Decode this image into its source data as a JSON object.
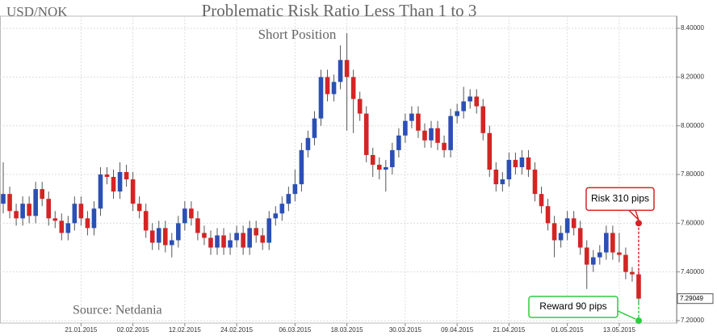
{
  "chart_data": {
    "type": "candlestick",
    "symbol": "USD/NOK",
    "title": "Problematic Risk Ratio Less Than 1 to 3",
    "subtitle": "Short Position",
    "source": "Source: Netdania",
    "up_color": "#2b4fb5",
    "down_color": "#d42424",
    "grid": true,
    "xlim": [
      -0.5,
      98.5
    ],
    "xticks": [
      {
        "value": 12,
        "label": "21.01.2015"
      },
      {
        "value": 20,
        "label": "02.02.2015"
      },
      {
        "value": 28,
        "label": "12.02.2015"
      },
      {
        "value": 36,
        "label": "24.02.2015"
      },
      {
        "value": 45,
        "label": "06.03.2015"
      },
      {
        "value": 53,
        "label": "18.03.2015"
      },
      {
        "value": 62,
        "label": "30.03.2015"
      },
      {
        "value": 70,
        "label": "09.04.2015"
      },
      {
        "value": 78,
        "label": "21.04.2015"
      },
      {
        "value": 87,
        "label": "01.05.2015"
      },
      {
        "value": 95,
        "label": "13.05.2015"
      }
    ],
    "ylim": [
      7.19,
      8.45
    ],
    "yticks": [
      {
        "value": 7.2,
        "label": "7.20000"
      },
      {
        "value": 7.4,
        "label": "7.40000"
      },
      {
        "value": 7.6,
        "label": "7.60000"
      },
      {
        "value": 7.8,
        "label": "7.80000"
      },
      {
        "value": 8.0,
        "label": "8.00000"
      },
      {
        "value": 8.2,
        "label": "8.20000"
      },
      {
        "value": 8.4,
        "label": "8.40000"
      }
    ],
    "last_price": {
      "value": 7.29049,
      "label": "7.29049"
    },
    "open": [
      7.68,
      7.72,
      7.65,
      7.62,
      7.68,
      7.63,
      7.74,
      7.7,
      7.62,
      7.61,
      7.56,
      7.6,
      7.68,
      7.62,
      7.58,
      7.66,
      7.8,
      7.79,
      7.73,
      7.81,
      7.78,
      7.68,
      7.65,
      7.57,
      7.52,
      7.58,
      7.51,
      7.53,
      7.6,
      7.66,
      7.62,
      7.56,
      7.54,
      7.5,
      7.55,
      7.5,
      7.53,
      7.56,
      7.5,
      7.58,
      7.55,
      7.52,
      7.62,
      7.64,
      7.68,
      7.72,
      7.76,
      7.9,
      7.95,
      8.03,
      8.2,
      8.13,
      8.18,
      8.27,
      8.2,
      8.11,
      8.05,
      7.88,
      7.84,
      7.82,
      7.83,
      7.9,
      7.96,
      8.02,
      8.05,
      7.98,
      7.94,
      7.99,
      7.93,
      7.9,
      8.04,
      8.06,
      8.1,
      8.12,
      8.08,
      7.97,
      7.82,
      7.76,
      7.78,
      7.86,
      7.83,
      7.87,
      7.82,
      7.72,
      7.67,
      7.6,
      7.53,
      7.56,
      7.62,
      7.58,
      7.5,
      7.43,
      7.46,
      7.48,
      7.56,
      7.48,
      7.47,
      7.4,
      7.39
    ],
    "high": [
      7.85,
      7.75,
      7.68,
      7.71,
      7.71,
      7.77,
      7.77,
      7.73,
      7.65,
      7.64,
      7.63,
      7.71,
      7.71,
      7.65,
      7.69,
      7.83,
      7.83,
      7.82,
      7.85,
      7.84,
      7.81,
      7.71,
      7.68,
      7.6,
      7.61,
      7.61,
      7.56,
      7.63,
      7.69,
      7.69,
      7.65,
      7.59,
      7.57,
      7.58,
      7.58,
      7.56,
      7.59,
      7.59,
      7.61,
      7.61,
      7.58,
      7.65,
      7.67,
      7.71,
      7.75,
      7.82,
      7.93,
      7.98,
      8.06,
      8.23,
      8.23,
      8.21,
      8.33,
      8.38,
      8.23,
      8.14,
      8.08,
      7.91,
      7.87,
      7.86,
      7.93,
      7.99,
      8.05,
      8.08,
      8.08,
      8.01,
      8.02,
      8.02,
      7.96,
      8.07,
      8.09,
      8.16,
      8.15,
      8.15,
      8.11,
      8.0,
      7.85,
      7.81,
      7.89,
      7.89,
      7.9,
      7.9,
      7.85,
      7.75,
      7.7,
      7.63,
      7.59,
      7.65,
      7.65,
      7.61,
      7.53,
      7.49,
      7.51,
      7.59,
      7.59,
      7.56,
      7.5,
      7.42,
      7.41
    ],
    "low": [
      7.64,
      7.62,
      7.59,
      7.59,
      7.6,
      7.6,
      7.67,
      7.59,
      7.58,
      7.53,
      7.53,
      7.57,
      7.59,
      7.55,
      7.55,
      7.63,
      7.76,
      7.7,
      7.7,
      7.75,
      7.65,
      7.62,
      7.54,
      7.49,
      7.49,
      7.48,
      7.46,
      7.5,
      7.57,
      7.59,
      7.53,
      7.51,
      7.47,
      7.47,
      7.47,
      7.47,
      7.5,
      7.47,
      7.47,
      7.52,
      7.49,
      7.49,
      7.59,
      7.61,
      7.65,
      7.69,
      7.73,
      7.87,
      7.92,
      8.0,
      8.1,
      8.1,
      8.15,
      7.98,
      7.97,
      8.02,
      7.85,
      7.79,
      7.78,
      7.73,
      7.8,
      7.87,
      7.93,
      7.99,
      7.95,
      7.91,
      7.91,
      7.9,
      7.87,
      7.87,
      8.01,
      8.03,
      8.07,
      8.05,
      7.94,
      7.79,
      7.73,
      7.73,
      7.75,
      7.8,
      7.8,
      7.79,
      7.69,
      7.64,
      7.57,
      7.46,
      7.5,
      7.53,
      7.55,
      7.47,
      7.33,
      7.4,
      7.43,
      7.45,
      7.45,
      7.44,
      7.37,
      7.36,
      7.27
    ],
    "close": [
      7.72,
      7.65,
      7.62,
      7.68,
      7.63,
      7.74,
      7.7,
      7.62,
      7.61,
      7.56,
      7.6,
      7.68,
      7.62,
      7.58,
      7.66,
      7.8,
      7.79,
      7.73,
      7.81,
      7.78,
      7.68,
      7.65,
      7.57,
      7.52,
      7.58,
      7.51,
      7.53,
      7.6,
      7.66,
      7.62,
      7.56,
      7.54,
      7.5,
      7.55,
      7.5,
      7.53,
      7.56,
      7.5,
      7.58,
      7.55,
      7.52,
      7.62,
      7.64,
      7.68,
      7.72,
      7.76,
      7.9,
      7.95,
      8.03,
      8.2,
      8.13,
      8.18,
      8.27,
      8.2,
      8.11,
      8.05,
      7.88,
      7.84,
      7.82,
      7.83,
      7.9,
      7.96,
      8.02,
      8.05,
      7.98,
      7.94,
      7.99,
      7.93,
      7.9,
      8.04,
      8.06,
      8.1,
      8.12,
      8.08,
      7.97,
      7.82,
      7.76,
      7.78,
      7.86,
      7.83,
      7.87,
      7.82,
      7.72,
      7.67,
      7.6,
      7.53,
      7.56,
      7.62,
      7.58,
      7.5,
      7.43,
      7.46,
      7.48,
      7.56,
      7.48,
      7.47,
      7.4,
      7.39,
      7.29049
    ],
    "risk": {
      "label": "Risk 310 pips",
      "level": 7.6,
      "color": "#d42424"
    },
    "reward": {
      "label": "Reward 90 pips",
      "level": 7.2,
      "color": "#2ecc40"
    }
  }
}
